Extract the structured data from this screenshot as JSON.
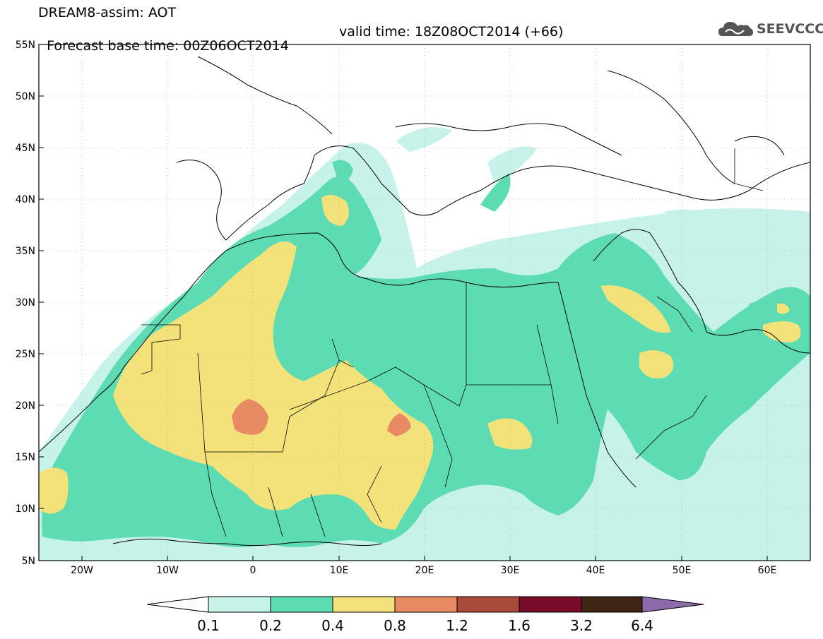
{
  "title": {
    "line1": "DREAM8-assim: AOT",
    "line2_base": "Forecast base time: 00Z06OCT2014",
    "line2_valid": "valid time: 18Z08OCT2014 (+66)"
  },
  "logo": {
    "text": "SEEVCCC",
    "icon": "cloud-icon"
  },
  "map": {
    "lon_range": [
      -25,
      65
    ],
    "lat_range": [
      5,
      55
    ],
    "lat_ticks": [
      "55N",
      "50N",
      "45N",
      "40N",
      "35N",
      "30N",
      "25N",
      "20N",
      "15N",
      "10N",
      "5N"
    ],
    "lon_ticks": [
      "20W",
      "10W",
      "0",
      "10E",
      "20E",
      "30E",
      "40E",
      "50E",
      "60E"
    ],
    "background_color": "#ffffff",
    "boundary_color": "#000000"
  },
  "colorbar": {
    "labels": [
      "0.1",
      "0.2",
      "0.4",
      "0.8",
      "1.2",
      "1.6",
      "3.2",
      "6.4"
    ],
    "colors": [
      "#ffffff",
      "#c6f2ea",
      "#5ddcb4",
      "#f3e27a",
      "#e88b64",
      "#a84b3b",
      "#7a0b2a",
      "#3e2413",
      "#8a6aa8"
    ]
  },
  "levels": {
    "0.1": "#c6f2ea",
    "0.2": "#5ddcb4",
    "0.4": "#f3e27a",
    "0.8": "#e88b64"
  }
}
